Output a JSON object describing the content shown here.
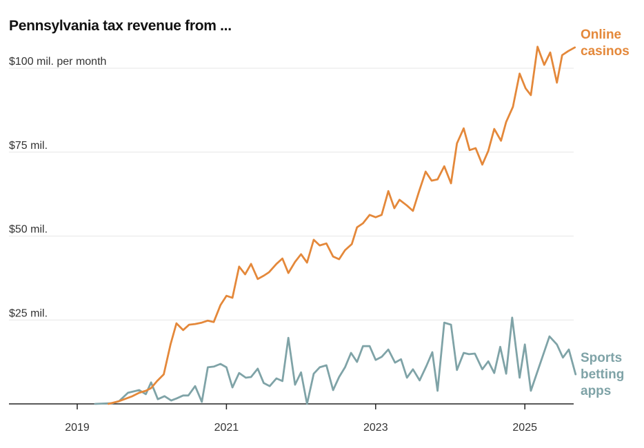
{
  "chart_data": {
    "type": "line",
    "title": "Pennsylvania tax revenue from ...",
    "xlabel": "",
    "ylabel": "",
    "y_unit_label": "$100 mil. per month",
    "xlim": [
      2018,
      2025.68
    ],
    "ylim": [
      0,
      110
    ],
    "grid": true,
    "yticks": [
      {
        "value": 25,
        "label": "$25 mil."
      },
      {
        "value": 50,
        "label": "$50 mil."
      },
      {
        "value": 75,
        "label": "$75 mil."
      },
      {
        "value": 100,
        "label": "$100 mil. per month"
      }
    ],
    "xticks": [
      {
        "value": 2019,
        "label": "2019"
      },
      {
        "value": 2021,
        "label": "2021"
      },
      {
        "value": 2023,
        "label": "2023"
      },
      {
        "value": 2025,
        "label": "2025"
      }
    ],
    "series": [
      {
        "name": "Online casinos",
        "label_lines": [
          "Online",
          "casinos"
        ],
        "color": "#E4883A",
        "x": [
          2019.42,
          2019.56,
          2019.74,
          2019.83,
          2019.92,
          2019.99,
          2020.07,
          2020.16,
          2020.25,
          2020.33,
          2020.42,
          2020.5,
          2020.58,
          2020.67,
          2020.75,
          2020.83,
          2020.92,
          2021.0,
          2021.08,
          2021.17,
          2021.25,
          2021.33,
          2021.42,
          2021.5,
          2021.57,
          2021.67,
          2021.75,
          2021.83,
          2021.92,
          2022.0,
          2022.08,
          2022.17,
          2022.25,
          2022.34,
          2022.43,
          2022.51,
          2022.59,
          2022.68,
          2022.75,
          2022.83,
          2022.92,
          2023.0,
          2023.08,
          2023.17,
          2023.25,
          2023.32,
          2023.42,
          2023.5,
          2023.58,
          2023.67,
          2023.75,
          2023.83,
          2023.92,
          2024.01,
          2024.09,
          2024.18,
          2024.26,
          2024.34,
          2024.43,
          2024.51,
          2024.59,
          2024.68,
          2024.75,
          2024.84,
          2024.93,
          2025.01,
          2025.08,
          2025.17,
          2025.26,
          2025.34,
          2025.43,
          2025.5,
          2025.58,
          2025.67
        ],
        "values": [
          0,
          0.8,
          2.3,
          3.3,
          3.9,
          4.7,
          6.8,
          8.8,
          17.7,
          24.0,
          22.0,
          23.6,
          23.8,
          24.2,
          24.8,
          24.4,
          29.4,
          32.2,
          31.6,
          40.9,
          38.6,
          41.7,
          37.2,
          38.2,
          39.2,
          41.7,
          43.3,
          39.0,
          42.3,
          44.6,
          42.1,
          48.9,
          47.2,
          47.8,
          43.9,
          43.1,
          45.8,
          47.6,
          52.6,
          53.8,
          56.3,
          55.6,
          56.3,
          63.4,
          58.3,
          60.8,
          59.1,
          57.5,
          63.2,
          69.2,
          66.5,
          66.9,
          70.8,
          65.7,
          77.6,
          82.1,
          75.6,
          76.2,
          71.3,
          75.4,
          81.9,
          78.4,
          84.0,
          88.5,
          98.4,
          94.0,
          92.0,
          106.4,
          101.0,
          104.7,
          95.7,
          103.9,
          105.1,
          106.2
        ]
      },
      {
        "name": "Sports betting apps",
        "label_lines": [
          "Sports",
          "betting",
          "apps"
        ],
        "color": "#7FA3A7",
        "x": [
          2019.24,
          2019.47,
          2019.56,
          2019.68,
          2019.83,
          2019.92,
          2019.99,
          2020.08,
          2020.17,
          2020.26,
          2020.33,
          2020.42,
          2020.49,
          2020.58,
          2020.67,
          2020.75,
          2020.83,
          2020.92,
          2021.0,
          2021.08,
          2021.17,
          2021.26,
          2021.33,
          2021.42,
          2021.5,
          2021.58,
          2021.67,
          2021.75,
          2021.83,
          2021.92,
          2022.0,
          2022.08,
          2022.17,
          2022.25,
          2022.34,
          2022.43,
          2022.51,
          2022.59,
          2022.67,
          2022.75,
          2022.83,
          2022.92,
          2023.0,
          2023.08,
          2023.17,
          2023.26,
          2023.34,
          2023.42,
          2023.5,
          2023.59,
          2023.68,
          2023.76,
          2023.83,
          2023.92,
          2024.01,
          2024.09,
          2024.18,
          2024.25,
          2024.33,
          2024.43,
          2024.51,
          2024.59,
          2024.67,
          2024.75,
          2024.83,
          2024.93,
          2025.0,
          2025.08,
          2025.33,
          2025.43,
          2025.51,
          2025.59,
          2025.68
        ],
        "values": [
          0,
          0.2,
          0.8,
          3.3,
          4.1,
          2.9,
          6.4,
          1.4,
          2.3,
          1.0,
          1.6,
          2.5,
          2.5,
          5.3,
          0.6,
          10.9,
          11.1,
          11.9,
          10.9,
          4.9,
          9.2,
          7.8,
          8.0,
          10.5,
          6.2,
          5.3,
          7.6,
          6.8,
          19.7,
          5.7,
          9.4,
          0,
          9.0,
          10.9,
          11.5,
          4.1,
          8.0,
          10.9,
          15.2,
          12.5,
          17.2,
          17.2,
          13.1,
          14.0,
          16.2,
          12.3,
          13.3,
          7.8,
          10.3,
          7.0,
          11.3,
          15.4,
          3.9,
          24.2,
          23.6,
          10.1,
          15.2,
          14.8,
          15.0,
          10.3,
          12.7,
          9.2,
          17.0,
          9.0,
          25.7,
          7.8,
          17.7,
          3.9,
          20.1,
          17.7,
          13.8,
          16.2,
          8.8
        ]
      }
    ]
  }
}
